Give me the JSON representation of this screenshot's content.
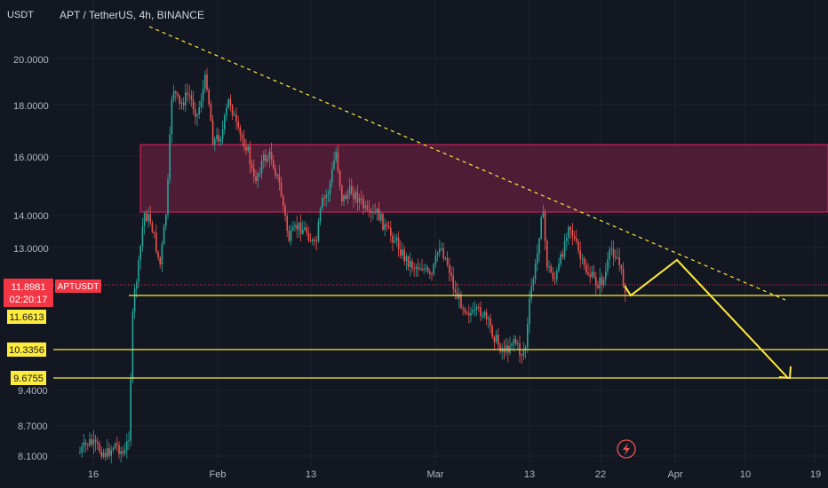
{
  "header": {
    "unit": "USDT",
    "symbol_title": "APT / TetherUS, 4h, BINANCE"
  },
  "price_axis": {
    "ticks": [
      "20.0000",
      "18.0000",
      "16.0000",
      "14.0000",
      "13.0000",
      "9.4000",
      "8.7000",
      "8.1000"
    ]
  },
  "time_axis": {
    "labels": [
      "16",
      "Feb",
      "13",
      "Mar",
      "13",
      "22",
      "Apr",
      "10",
      "19"
    ]
  },
  "badges": {
    "current_price": "11.8981",
    "countdown": "02:20:17",
    "symbol_tag": "APTUSDT",
    "level_1": "11.6613",
    "level_2": "10.3356",
    "level_3": "9.6755"
  },
  "colors": {
    "background": "#131722",
    "bull": "#26a69a",
    "bear": "#ef5350",
    "zone_fill": "#5b1d3a",
    "zone_border": "#e91e63",
    "level_line": "#ffeb3b",
    "trend_line": "#ffeb3b",
    "current_price": "#f23645"
  },
  "icons": {
    "replay": "lightning-icon"
  }
}
